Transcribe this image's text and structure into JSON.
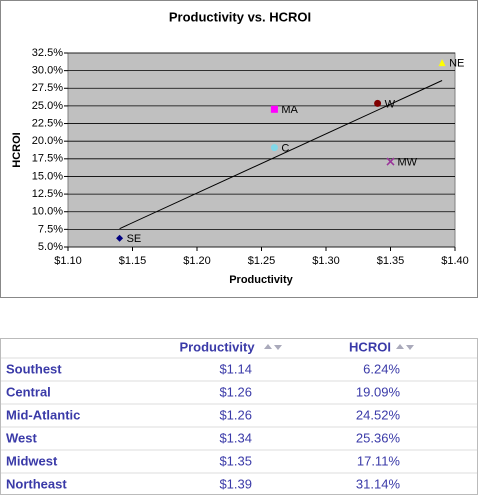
{
  "chart_data": {
    "type": "scatter",
    "title": "Productivity vs. HCROI",
    "x_label": "Productivity",
    "y_label": "HCROI",
    "x": [
      1.14,
      1.26,
      1.26,
      1.34,
      1.35,
      1.39
    ],
    "values": [
      6.24,
      19.09,
      24.52,
      25.36,
      17.11,
      31.14
    ],
    "point_labels": [
      "SE",
      "C",
      "MA",
      "W",
      "MW",
      "NE"
    ],
    "colors": [
      "#000080",
      "#80d8e8",
      "#ff00ff",
      "#800000",
      "#993399",
      "#ffff00"
    ],
    "markers": [
      "diamond",
      "circle",
      "square",
      "circle",
      "x",
      "triangle"
    ],
    "trendline": {
      "x": [
        1.14,
        1.39
      ],
      "values": [
        7.6,
        28.6
      ],
      "color": "#000000"
    },
    "xlim": [
      1.1,
      1.4
    ],
    "xticks": [
      {
        "value": 1.1,
        "label": "$1.10"
      },
      {
        "value": 1.15,
        "label": "$1.15"
      },
      {
        "value": 1.2,
        "label": "$1.20"
      },
      {
        "value": 1.25,
        "label": "$1.25"
      },
      {
        "value": 1.3,
        "label": "$1.30"
      },
      {
        "value": 1.35,
        "label": "$1.35"
      },
      {
        "value": 1.4,
        "label": "$1.40"
      }
    ],
    "ylim": [
      5,
      32.5
    ],
    "yticks": [
      {
        "value": 5,
        "label": "5.0%"
      },
      {
        "value": 7.5,
        "label": "7.5%"
      },
      {
        "value": 10,
        "label": "10.0%"
      },
      {
        "value": 12.5,
        "label": "12.5%"
      },
      {
        "value": 15,
        "label": "15.0%"
      },
      {
        "value": 17.5,
        "label": "17.5%"
      },
      {
        "value": 20,
        "label": "20.0%"
      },
      {
        "value": 22.5,
        "label": "22.5%"
      },
      {
        "value": 25,
        "label": "25.0%"
      },
      {
        "value": 27.5,
        "label": "27.5%"
      },
      {
        "value": 30,
        "label": "30.0%"
      },
      {
        "value": 32.5,
        "label": "32.5%"
      }
    ],
    "grid": true,
    "plot_background": "#c0c0c0"
  },
  "table": {
    "headers": [
      "Productivity",
      "HCROI"
    ],
    "rows": [
      [
        "Southest",
        "$1.14",
        "6.24%"
      ],
      [
        "Central",
        "$1.26",
        "19.09%"
      ],
      [
        "Mid-Atlantic",
        "$1.26",
        "24.52%"
      ],
      [
        "West",
        "$1.34",
        "25.36%"
      ],
      [
        "Midwest",
        "$1.35",
        "17.11%"
      ],
      [
        "Northeast",
        "$1.39",
        "31.14%"
      ]
    ]
  }
}
